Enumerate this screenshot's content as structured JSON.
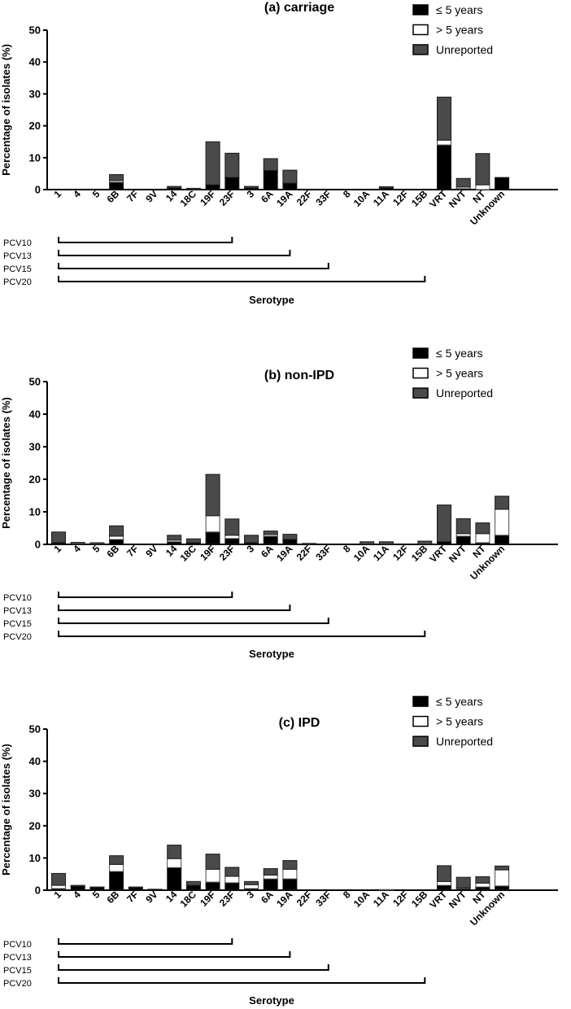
{
  "chart_data": [
    {
      "type": "bar",
      "stacked": true,
      "title": "(a) carriage",
      "xlabel": "Serotype",
      "ylabel": "Percentage of isolates (%)",
      "ylim": [
        0,
        50
      ],
      "yticks": [
        "0",
        "10",
        "20",
        "30",
        "40",
        "50"
      ],
      "categories": [
        "1",
        "4",
        "5",
        "6B",
        "7F",
        "9V",
        "14",
        "18C",
        "19F",
        "23F",
        "3",
        "6A",
        "19A",
        "22F",
        "33F",
        "8",
        "10A",
        "11A",
        "12F",
        "15B",
        "VRT",
        "NVT",
        "NT",
        "Unknown"
      ],
      "series": [
        {
          "name": "≤ 5 years",
          "color": "#000000",
          "values": [
            0,
            0,
            0,
            2.3,
            0,
            0,
            0.5,
            0,
            1.5,
            3.8,
            0.5,
            6,
            2,
            0,
            0,
            0,
            0,
            0.5,
            0,
            0,
            14,
            0.3,
            0,
            3.8
          ]
        },
        {
          "name": "> 5 years",
          "color": "#ffffff",
          "values": [
            0,
            0,
            0,
            0.5,
            0,
            0,
            0,
            0,
            0,
            0,
            0,
            0,
            0,
            0,
            0,
            0,
            0,
            0,
            0,
            0,
            1.5,
            0.5,
            1.5,
            0
          ]
        },
        {
          "name": "Unreported",
          "color": "#4a4a4a",
          "values": [
            0,
            0,
            0,
            1.9,
            0,
            0,
            0.5,
            0.4,
            13.5,
            7.6,
            0.5,
            3.7,
            4.1,
            0,
            0,
            0,
            0,
            0.4,
            0,
            0,
            13.5,
            2.7,
            9.8,
            0
          ]
        }
      ],
      "legend": [
        "≤ 5 years",
        "> 5 years",
        "Unreported"
      ],
      "brackets": [
        {
          "label": "PCV10",
          "from": "1",
          "to": "23F"
        },
        {
          "label": "PCV13",
          "from": "1",
          "to": "19A"
        },
        {
          "label": "PCV15",
          "from": "1",
          "to": "33F"
        },
        {
          "label": "PCV20",
          "from": "1",
          "to": "15B"
        }
      ]
    },
    {
      "type": "bar",
      "stacked": true,
      "title": "(b) non-IPD",
      "xlabel": "Serotype",
      "ylabel": "Percentage of isolates (%)",
      "ylim": [
        0,
        50
      ],
      "yticks": [
        "0",
        "10",
        "20",
        "30",
        "40",
        "50"
      ],
      "categories": [
        "1",
        "4",
        "5",
        "6B",
        "7F",
        "9V",
        "14",
        "18C",
        "19F",
        "23F",
        "3",
        "6A",
        "19A",
        "22F",
        "33F",
        "8",
        "10A",
        "11A",
        "12F",
        "15B",
        "VRT",
        "NVT",
        "NT",
        "Unknown"
      ],
      "series": [
        {
          "name": "≤ 5 years",
          "color": "#000000",
          "values": [
            0.5,
            0,
            0,
            1.5,
            0,
            0,
            0.8,
            0.5,
            3.8,
            1.8,
            0.5,
            2.5,
            1.5,
            0,
            0,
            0,
            0,
            0,
            0,
            0,
            0.8,
            2.5,
            0.5,
            2.8
          ]
        },
        {
          "name": "> 5 years",
          "color": "#ffffff",
          "values": [
            0,
            0,
            0,
            1,
            0,
            0,
            0.5,
            0,
            5,
            1,
            0,
            0.5,
            0,
            0,
            0,
            0,
            0,
            0,
            0,
            0,
            0,
            0.8,
            2.8,
            8
          ]
        },
        {
          "name": "Unreported",
          "color": "#4a4a4a",
          "values": [
            3.3,
            0.6,
            0.5,
            3.2,
            0,
            0,
            1.5,
            1.2,
            12.7,
            5,
            2.3,
            1.1,
            1.6,
            0.3,
            0,
            0,
            0.8,
            0.8,
            0,
            1,
            11.3,
            4.6,
            3.3,
            4
          ]
        }
      ],
      "legend": [
        "≤ 5 years",
        "> 5 years",
        "Unreported"
      ],
      "brackets": [
        {
          "label": "PCV10",
          "from": "1",
          "to": "23F"
        },
        {
          "label": "PCV13",
          "from": "1",
          "to": "19A"
        },
        {
          "label": "PCV15",
          "from": "1",
          "to": "33F"
        },
        {
          "label": "PCV20",
          "from": "1",
          "to": "15B"
        }
      ]
    },
    {
      "type": "bar",
      "stacked": true,
      "title": "(c) IPD",
      "xlabel": "Serotype",
      "ylabel": "Percentage of isolates (%)",
      "ylim": [
        0,
        50
      ],
      "yticks": [
        "0",
        "10",
        "20",
        "30",
        "40",
        "50"
      ],
      "categories": [
        "1",
        "4",
        "5",
        "6B",
        "7F",
        "9V",
        "14",
        "18C",
        "19F",
        "23F",
        "3",
        "6A",
        "19A",
        "22F",
        "33F",
        "8",
        "10A",
        "11A",
        "12F",
        "15B",
        "VRT",
        "NVT",
        "NT",
        "Unknown"
      ],
      "series": [
        {
          "name": "≤ 5 years",
          "color": "#000000",
          "values": [
            0.5,
            1.2,
            0.8,
            5.8,
            0.8,
            0.3,
            7,
            1.5,
            2.5,
            2.3,
            0.5,
            3.5,
            3.5,
            0,
            0,
            0,
            0,
            0,
            0,
            0,
            1.5,
            0.5,
            1,
            1.3
          ]
        },
        {
          "name": "> 5 years",
          "color": "#ffffff",
          "values": [
            1,
            0,
            0,
            2.2,
            0,
            0,
            2.8,
            0,
            4,
            2,
            1.2,
            1.2,
            3,
            0,
            0,
            0,
            0,
            0.2,
            0,
            0,
            1.2,
            0.3,
            1.2,
            5
          ]
        },
        {
          "name": "Unreported",
          "color": "#4a4a4a",
          "values": [
            3.7,
            0.3,
            0.2,
            2.7,
            0.2,
            0,
            4.2,
            1.2,
            4.7,
            2.8,
            1,
            2,
            2.7,
            0,
            0,
            0,
            0,
            0,
            0,
            0,
            4.9,
            3.2,
            2,
            1.2
          ]
        }
      ],
      "legend": [
        "≤ 5 years",
        "> 5 years",
        "Unreported"
      ],
      "brackets": [
        {
          "label": "PCV10",
          "from": "1",
          "to": "23F"
        },
        {
          "label": "PCV13",
          "from": "1",
          "to": "19A"
        },
        {
          "label": "PCV15",
          "from": "1",
          "to": "33F"
        },
        {
          "label": "PCV20",
          "from": "1",
          "to": "15B"
        }
      ]
    }
  ]
}
